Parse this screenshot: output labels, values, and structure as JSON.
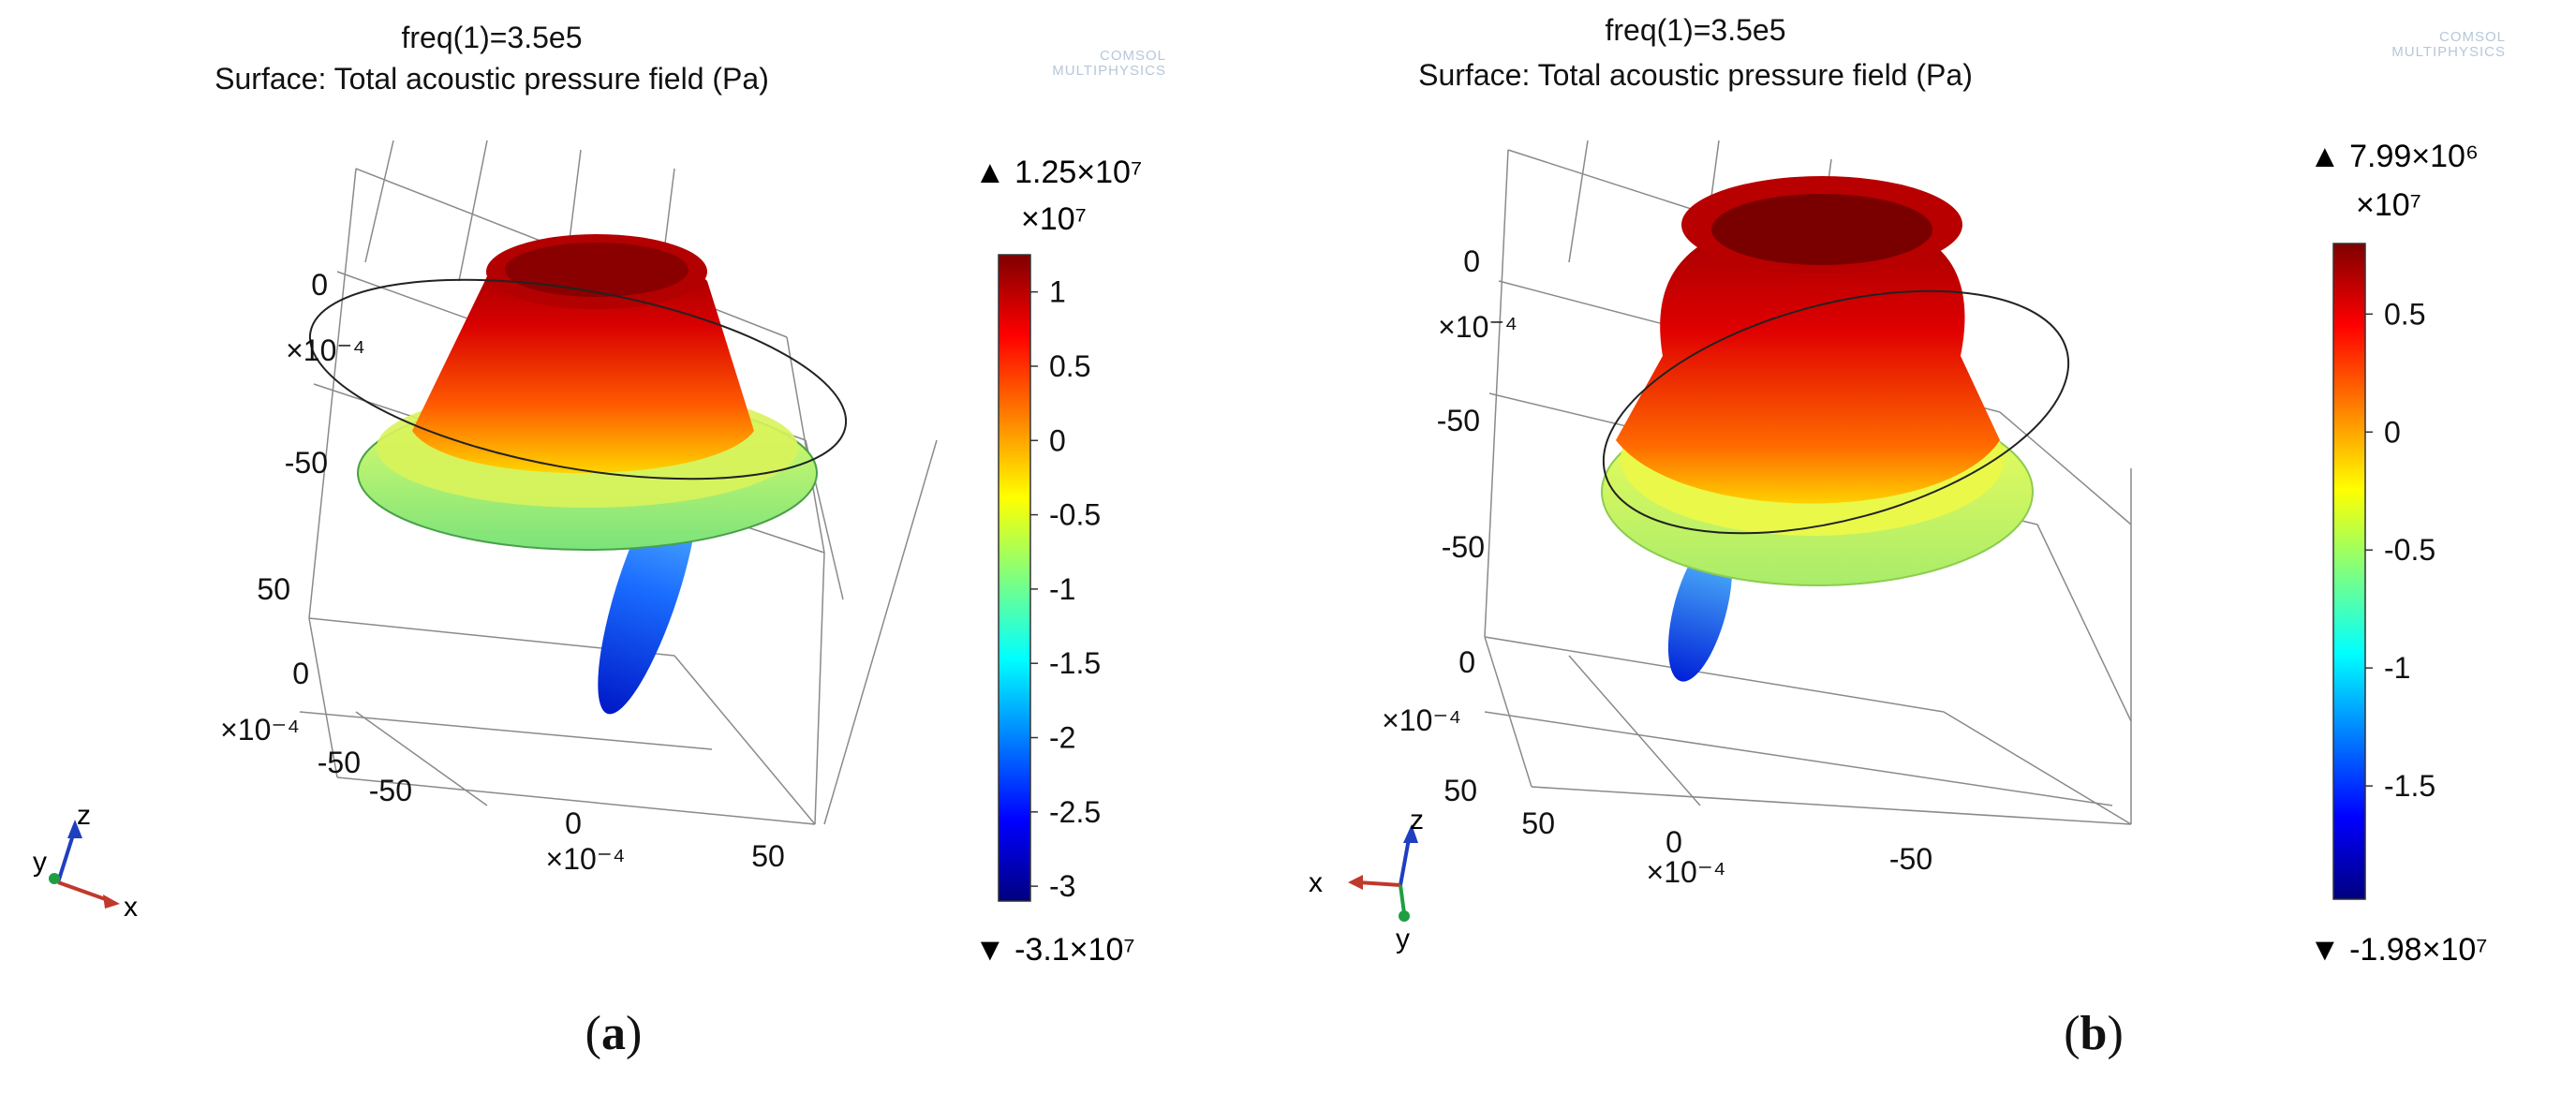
{
  "colors": {
    "cmap": [
      "#00007f",
      "#0000ff",
      "#007fff",
      "#00ffff",
      "#7fff7f",
      "#ffff00",
      "#ff7f00",
      "#ff0000",
      "#7f0000"
    ]
  },
  "chart_data": [
    {
      "type": "surface-3d",
      "panel_label": "a",
      "title": "freq(1)=3.5e5",
      "subtitle": "Surface: Total acoustic pressure field (Pa)",
      "watermark": [
        "COMSOL",
        "MULTIPHYSICS"
      ],
      "axes": {
        "z": {
          "ticks": [
            "0",
            "-50"
          ],
          "exp_label": "×10⁻⁴"
        },
        "y": {
          "ticks": [
            "50",
            "0",
            "-50"
          ],
          "exp_label": "×10⁻⁴"
        },
        "x": {
          "ticks": [
            "-50",
            "0",
            "50"
          ],
          "exp_label": "×10⁻⁴"
        },
        "triad": [
          "z",
          "y",
          "x"
        ]
      },
      "colorbar": {
        "max_label": "▲ 1.25×10⁷",
        "min_label": "▼ -3.1×10⁷",
        "scale_label": "×10⁷",
        "range": [
          -3.1,
          1.25
        ],
        "ticks": [
          1,
          0.5,
          0,
          -0.5,
          -1,
          -1.5,
          -2,
          -2.5,
          -3
        ],
        "tick_labels": [
          "1",
          "0.5",
          "0",
          "-0.5",
          "-1",
          "-1.5",
          "-2",
          "-2.5",
          "-3"
        ]
      }
    },
    {
      "type": "surface-3d",
      "panel_label": "b",
      "title": "freq(1)=3.5e5",
      "subtitle": "Surface: Total acoustic pressure field (Pa)",
      "watermark": [
        "COMSOL",
        "MULTIPHYSICS"
      ],
      "axes": {
        "z": {
          "ticks": [
            "0",
            "-50"
          ],
          "exp_label": "×10⁻⁴"
        },
        "y": {
          "ticks": [
            "-50",
            "0",
            "50"
          ],
          "exp_label": "×10⁻⁴"
        },
        "x": {
          "ticks": [
            "50",
            "0",
            "-50"
          ],
          "exp_label": "×10⁻⁴"
        },
        "triad": [
          "z",
          "x",
          "y"
        ]
      },
      "colorbar": {
        "max_label": "▲ 7.99×10⁶",
        "min_label": "▼ -1.98×10⁷",
        "scale_label": "×10⁷",
        "range": [
          -1.98,
          0.799
        ],
        "ticks": [
          0.5,
          0,
          -0.5,
          -1,
          -1.5
        ],
        "tick_labels": [
          "0.5",
          "0",
          "-0.5",
          "-1",
          "-1.5"
        ]
      }
    }
  ]
}
